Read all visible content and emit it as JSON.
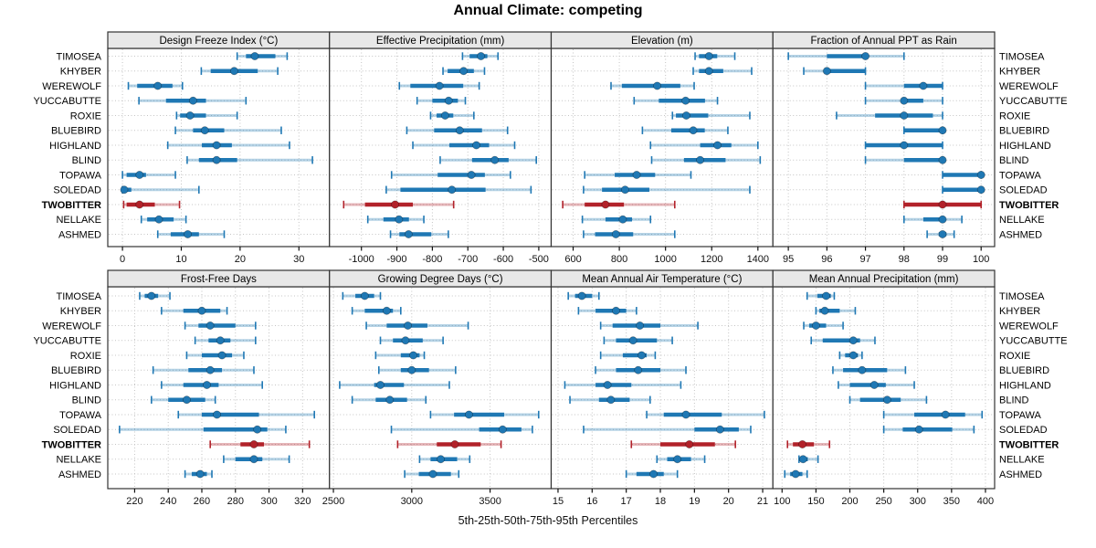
{
  "title": "Annual Climate: competing",
  "caption": "5th-25th-50th-75th-95th Percentiles",
  "colors": {
    "series": "#1f78b4",
    "highlight": "#b2222a",
    "strip_bg": "#e8e8e8",
    "panel_border": "#333333",
    "grid": "#c4c4c4",
    "tick": "#111111",
    "text": "#000000"
  },
  "chart_data": {
    "type": "dot-interval-trellis",
    "percentiles": [
      5,
      25,
      50,
      75,
      95
    ],
    "stations": [
      "TIMOSEA",
      "KHYBER",
      "WEREWOLF",
      "YUCCABUTTE",
      "ROXIE",
      "BLUEBIRD",
      "HIGHLAND",
      "BLIND",
      "TOPAWA",
      "SOLEDAD",
      "TWOBITTER",
      "NELLAKE",
      "ASHMED"
    ],
    "highlighted_station": "TWOBITTER",
    "legend": "none",
    "grid": "dotted",
    "panels": [
      {
        "title": "Design Freeze Index (°C)",
        "row": 0,
        "col": 0,
        "xlim": [
          -2.5,
          35.2
        ],
        "ticks": [
          0,
          10,
          20,
          30
        ],
        "values": {
          "TIMOSEA": [
            19.5,
            21.0,
            22.5,
            26.0,
            28.0
          ],
          "KHYBER": [
            13.4,
            15.0,
            19.0,
            23.0,
            26.4
          ],
          "WEREWOLF": [
            1.0,
            2.5,
            6.0,
            8.5,
            10.2
          ],
          "YUCCABUTTE": [
            2.8,
            7.4,
            12.0,
            14.2,
            21.0
          ],
          "ROXIE": [
            9.2,
            9.8,
            11.5,
            14.2,
            19.5
          ],
          "BLUEBIRD": [
            9.0,
            12.0,
            14.0,
            17.3,
            27.0
          ],
          "HIGHLAND": [
            7.7,
            13.5,
            16.0,
            18.6,
            28.4
          ],
          "BLIND": [
            11.0,
            13.0,
            16.0,
            19.5,
            32.3
          ],
          "TOPAWA": [
            0.0,
            0.7,
            2.9,
            4.0,
            9.0
          ],
          "SOLEDAD": [
            0.0,
            0.0,
            0.3,
            1.5,
            13.0
          ],
          "TWOBITTER": [
            0.2,
            0.7,
            2.9,
            5.5,
            9.7
          ],
          "NELLAKE": [
            3.2,
            4.2,
            6.2,
            8.7,
            10.8
          ],
          "ASHMED": [
            6.0,
            8.2,
            11.1,
            13.0,
            17.3
          ]
        }
      },
      {
        "title": "Effective Precipitation (mm)",
        "row": 0,
        "col": 1,
        "xlim": [
          -1090,
          -465
        ],
        "ticks": [
          -1000,
          -900,
          -800,
          -700,
          -600,
          -500
        ],
        "values": {
          "TIMOSEA": [
            -715,
            -695,
            -663,
            -645,
            -615
          ],
          "KHYBER": [
            -770,
            -757,
            -712,
            -683,
            -653
          ],
          "WEREWOLF": [
            -893,
            -862,
            -780,
            -713,
            -668
          ],
          "YUCCABUTTE": [
            -843,
            -800,
            -754,
            -728,
            -707
          ],
          "ROXIE": [
            -805,
            -788,
            -764,
            -741,
            -683
          ],
          "BLUEBIRD": [
            -872,
            -795,
            -723,
            -660,
            -588
          ],
          "HIGHLAND": [
            -855,
            -752,
            -676,
            -640,
            -568
          ],
          "BLIND": [
            -778,
            -688,
            -624,
            -585,
            -507
          ],
          "TOPAWA": [
            -915,
            -785,
            -690,
            -652,
            -580
          ],
          "SOLEDAD": [
            -930,
            -890,
            -745,
            -650,
            -522
          ],
          "TWOBITTER": [
            -1050,
            -990,
            -905,
            -855,
            -740
          ],
          "NELLAKE": [
            -982,
            -938,
            -894,
            -866,
            -824
          ],
          "ASHMED": [
            -918,
            -893,
            -867,
            -803,
            -755
          ]
        }
      },
      {
        "title": "Elevation (m)",
        "row": 0,
        "col": 2,
        "xlim": [
          505,
          1465
        ],
        "ticks": [
          600,
          800,
          1000,
          1200,
          1400
        ],
        "values": {
          "TIMOSEA": [
            1128,
            1145,
            1188,
            1224,
            1300
          ],
          "KHYBER": [
            1120,
            1145,
            1188,
            1250,
            1373
          ],
          "WEREWOLF": [
            764,
            811,
            964,
            1064,
            1124
          ],
          "YUCCABUTTE": [
            864,
            971,
            1087,
            1171,
            1225
          ],
          "ROXIE": [
            1030,
            1045,
            1090,
            1185,
            1365
          ],
          "BLUEBIRD": [
            900,
            1025,
            1120,
            1170,
            1270
          ],
          "HIGHLAND": [
            935,
            1150,
            1225,
            1285,
            1400
          ],
          "BLIND": [
            940,
            1080,
            1150,
            1260,
            1410
          ],
          "TOPAWA": [
            650,
            780,
            875,
            955,
            1110
          ],
          "SOLEDAD": [
            645,
            725,
            825,
            930,
            1365
          ],
          "TWOBITTER": [
            555,
            650,
            740,
            820,
            1040
          ],
          "NELLAKE": [
            640,
            740,
            815,
            855,
            935
          ],
          "ASHMED": [
            645,
            695,
            785,
            860,
            1040
          ]
        }
      },
      {
        "title": "Fraction of Annual PPT as Rain",
        "row": 0,
        "col": 3,
        "xlim": [
          94.6,
          100.35
        ],
        "ticks": [
          95,
          96,
          97,
          98,
          99,
          100
        ],
        "values": {
          "TIMOSEA": [
            95.0,
            96.0,
            97.0,
            97.0,
            98.0
          ],
          "KHYBER": [
            95.4,
            96.0,
            96.0,
            97.0,
            97.0
          ],
          "WEREWOLF": [
            97.0,
            98.0,
            98.5,
            99.0,
            99.0
          ],
          "YUCCABUTTE": [
            97.0,
            98.0,
            98.0,
            98.5,
            99.0
          ],
          "ROXIE": [
            96.25,
            97.25,
            98.0,
            98.75,
            99.0
          ],
          "BLUEBIRD": [
            98.0,
            98.0,
            99.0,
            99.0,
            99.0
          ],
          "HIGHLAND": [
            97.0,
            97.0,
            98.0,
            99.0,
            99.0
          ],
          "BLIND": [
            97.0,
            98.0,
            99.0,
            99.0,
            99.0
          ],
          "TOPAWA": [
            99.0,
            99.0,
            100.0,
            100.0,
            100.0
          ],
          "SOLEDAD": [
            99.0,
            99.0,
            100.0,
            100.0,
            100.0
          ],
          "TWOBITTER": [
            98.0,
            98.0,
            99.0,
            100.0,
            100.0
          ],
          "NELLAKE": [
            98.0,
            98.5,
            99.0,
            99.0,
            99.5
          ],
          "ASHMED": [
            98.6,
            98.9,
            99.0,
            99.1,
            99.3
          ]
        }
      },
      {
        "title": "Frost-Free Days",
        "row": 1,
        "col": 0,
        "xlim": [
          204,
          336
        ],
        "ticks": [
          220,
          240,
          260,
          280,
          300,
          320
        ],
        "values": {
          "TIMOSEA": [
            223,
            226,
            230,
            234,
            241
          ],
          "KHYBER": [
            236,
            249,
            260,
            271,
            275
          ],
          "WEREWOLF": [
            250,
            258,
            265,
            280,
            292
          ],
          "YUCCABUTTE": [
            256,
            264,
            271,
            277,
            292
          ],
          "ROXIE": [
            251,
            260,
            272,
            278,
            285
          ],
          "BLUEBIRD": [
            231,
            252,
            265,
            272,
            291
          ],
          "HIGHLAND": [
            236,
            249,
            263,
            270,
            296
          ],
          "BLIND": [
            230,
            240,
            251,
            262,
            268
          ],
          "TOPAWA": [
            246,
            260,
            269,
            294,
            327
          ],
          "SOLEDAD": [
            211,
            261,
            293,
            299,
            310
          ],
          "TWOBITTER": [
            265,
            283,
            291,
            297,
            324
          ],
          "NELLAKE": [
            273,
            280,
            291,
            296,
            312
          ],
          "ASHMED": [
            250,
            254,
            259,
            263,
            266
          ]
        }
      },
      {
        "title": "Growing Degree Days (°C)",
        "row": 1,
        "col": 1,
        "xlim": [
          2475,
          3890
        ],
        "ticks": [
          2500,
          3000,
          3500
        ],
        "values": {
          "TIMOSEA": [
            2560,
            2640,
            2700,
            2760,
            2800
          ],
          "KHYBER": [
            2620,
            2700,
            2840,
            2880,
            2930
          ],
          "WEREWOLF": [
            2710,
            2840,
            2975,
            3100,
            3360
          ],
          "YUCCABUTTE": [
            2800,
            2880,
            2960,
            3070,
            3200
          ],
          "ROXIE": [
            2770,
            2930,
            3010,
            3050,
            3080
          ],
          "BLUEBIRD": [
            2790,
            2930,
            3000,
            3110,
            3280
          ],
          "HIGHLAND": [
            2540,
            2760,
            2800,
            2950,
            3240
          ],
          "BLIND": [
            2620,
            2770,
            2860,
            2970,
            3090
          ],
          "TOPAWA": [
            3120,
            3270,
            3365,
            3590,
            3810
          ],
          "SOLEDAD": [
            2870,
            3430,
            3580,
            3700,
            3770
          ],
          "TWOBITTER": [
            2910,
            3160,
            3275,
            3440,
            3570
          ],
          "NELLAKE": [
            3050,
            3120,
            3185,
            3290,
            3370
          ],
          "ASHMED": [
            2955,
            3045,
            3135,
            3250,
            3300
          ]
        }
      },
      {
        "title": "Mean Annual Air Temperature (°C)",
        "row": 1,
        "col": 2,
        "xlim": [
          14.8,
          21.3
        ],
        "ticks": [
          15,
          16,
          17,
          18,
          19,
          20,
          21
        ],
        "values": {
          "TIMOSEA": [
            15.3,
            15.5,
            15.7,
            16.0,
            16.2
          ],
          "KHYBER": [
            15.6,
            16.1,
            16.7,
            17.0,
            17.3
          ],
          "WEREWOLF": [
            16.25,
            16.6,
            17.4,
            18.0,
            19.1
          ],
          "YUCCABUTTE": [
            16.35,
            16.7,
            17.2,
            17.9,
            18.35
          ],
          "ROXIE": [
            16.25,
            16.9,
            17.45,
            17.6,
            17.85
          ],
          "BLUEBIRD": [
            16.1,
            16.7,
            17.35,
            18.0,
            18.75
          ],
          "HIGHLAND": [
            15.2,
            16.1,
            16.45,
            17.15,
            18.6
          ],
          "BLIND": [
            15.35,
            16.2,
            16.55,
            17.1,
            17.7
          ],
          "TOPAWA": [
            17.6,
            18.1,
            18.75,
            19.8,
            21.05
          ],
          "SOLEDAD": [
            15.75,
            19.0,
            19.75,
            20.3,
            20.65
          ],
          "TWOBITTER": [
            17.15,
            18.0,
            18.85,
            19.6,
            20.2
          ],
          "NELLAKE": [
            17.9,
            18.2,
            18.5,
            18.9,
            19.3
          ],
          "ASHMED": [
            17.0,
            17.3,
            17.8,
            18.1,
            18.5
          ]
        }
      },
      {
        "title": "Mean Annual Precipitation (mm)",
        "row": 1,
        "col": 3,
        "xlim": [
          86.5,
          413.5
        ],
        "ticks": [
          100,
          150,
          200,
          250,
          300,
          350,
          400
        ],
        "values": {
          "TIMOSEA": [
            137,
            152,
            165,
            172,
            177
          ],
          "KHYBER": [
            150,
            155,
            163,
            185,
            208
          ],
          "WEREWOLF": [
            132,
            140,
            150,
            165,
            190
          ],
          "YUCCABUTTE": [
            143,
            160,
            205,
            215,
            237
          ],
          "ROXIE": [
            185,
            193,
            205,
            212,
            218
          ],
          "BLUEBIRD": [
            175,
            190,
            218,
            255,
            282
          ],
          "HIGHLAND": [
            183,
            200,
            236,
            253,
            295
          ],
          "BLIND": [
            200,
            215,
            255,
            275,
            313
          ],
          "TOPAWA": [
            250,
            295,
            341,
            370,
            395
          ],
          "SOLEDAD": [
            250,
            278,
            302,
            351,
            383
          ],
          "TWOBITTER": [
            108,
            116,
            130,
            147,
            170
          ],
          "NELLAKE": [
            125,
            127,
            131,
            138,
            153
          ],
          "ASHMED": [
            104,
            112,
            120,
            130,
            137
          ]
        }
      }
    ]
  }
}
